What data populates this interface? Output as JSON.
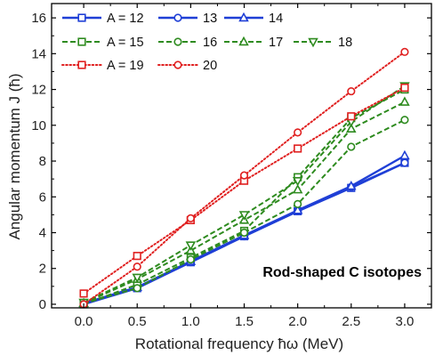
{
  "chart_data": {
    "type": "line",
    "xlabel": "Rotational frequency ħω (MeV)",
    "ylabel": "Angular momentum J (ħ)",
    "xlim": [
      -0.3,
      3.25
    ],
    "ylim": [
      -0.2,
      16.8
    ],
    "xticks": [
      0.0,
      0.5,
      1.0,
      1.5,
      2.0,
      2.5,
      3.0
    ],
    "xtick_labels": [
      "0.0",
      "0.5",
      "1.0",
      "1.5",
      "2.0",
      "2.5",
      "3.0"
    ],
    "yticks": [
      0,
      2,
      4,
      6,
      8,
      10,
      12,
      14,
      16
    ],
    "ytick_labels": [
      "0",
      "2",
      "4",
      "6",
      "8",
      "10",
      "12",
      "14",
      "16"
    ],
    "annotation": "Rod-shaped C isotopes",
    "grid": false,
    "legend_position": "top-left",
    "series": [
      {
        "name": "A = 12",
        "color": "#1f3fd6",
        "dash": "solid",
        "marker": "square",
        "x": [
          0.0,
          0.5,
          1.0,
          1.5,
          2.0,
          2.5,
          3.0
        ],
        "y": [
          0.0,
          0.9,
          2.35,
          3.8,
          5.2,
          6.5,
          7.9
        ]
      },
      {
        "name": "13",
        "color": "#1f3fd6",
        "dash": "solid",
        "marker": "circle",
        "x": [
          0.0,
          0.5,
          1.0,
          1.5,
          2.0,
          2.5,
          3.0
        ],
        "y": [
          0.05,
          0.95,
          2.35,
          3.8,
          5.2,
          6.55,
          7.9
        ]
      },
      {
        "name": "14",
        "color": "#1f3fd6",
        "dash": "solid",
        "marker": "triangle-up",
        "x": [
          0.0,
          0.5,
          1.0,
          1.5,
          2.0,
          2.5,
          3.0
        ],
        "y": [
          0.05,
          0.95,
          2.4,
          3.85,
          5.25,
          6.6,
          8.3
        ]
      },
      {
        "name": "A = 15",
        "color": "#2e8b1f",
        "dash": "dashed",
        "marker": "square",
        "x": [
          0.0,
          0.5,
          1.0,
          1.5,
          2.0,
          2.5,
          3.0
        ],
        "y": [
          0.0,
          1.1,
          2.6,
          4.1,
          7.1,
          10.4,
          12.0
        ]
      },
      {
        "name": "16",
        "color": "#2e8b1f",
        "dash": "dashed",
        "marker": "circle",
        "x": [
          0.0,
          0.5,
          1.0,
          1.5,
          2.0,
          2.5,
          3.0
        ],
        "y": [
          0.05,
          0.9,
          2.5,
          4.0,
          5.6,
          8.8,
          10.3
        ]
      },
      {
        "name": "17",
        "color": "#2e8b1f",
        "dash": "dashed",
        "marker": "triangle-up",
        "x": [
          0.0,
          0.5,
          1.0,
          1.5,
          2.0,
          2.5,
          3.0
        ],
        "y": [
          0.05,
          1.4,
          3.0,
          4.7,
          6.4,
          9.8,
          11.3
        ]
      },
      {
        "name": "18",
        "color": "#2e8b1f",
        "dash": "dashed",
        "marker": "triangle-down",
        "x": [
          0.0,
          0.5,
          1.0,
          1.5,
          2.0,
          2.5,
          3.0
        ],
        "y": [
          0.1,
          1.5,
          3.3,
          5.0,
          6.9,
          10.2,
          12.2
        ]
      },
      {
        "name": "A = 19",
        "color": "#e02020",
        "dash": "dotted",
        "marker": "square",
        "x": [
          0.0,
          0.5,
          1.0,
          1.5,
          2.0,
          2.5,
          3.0
        ],
        "y": [
          0.6,
          2.7,
          4.7,
          6.9,
          8.7,
          10.5,
          12.1
        ]
      },
      {
        "name": "20",
        "color": "#e02020",
        "dash": "dotted",
        "marker": "circle",
        "x": [
          0.0,
          0.5,
          1.0,
          1.5,
          2.0,
          2.5,
          3.0
        ],
        "y": [
          0.0,
          2.1,
          4.8,
          7.2,
          9.6,
          11.9,
          14.1
        ]
      }
    ],
    "legend_rows": [
      [
        "A = 12",
        "13",
        "14"
      ],
      [
        "A = 15",
        "16",
        "17",
        "18"
      ],
      [
        "A = 19",
        "20"
      ]
    ]
  }
}
